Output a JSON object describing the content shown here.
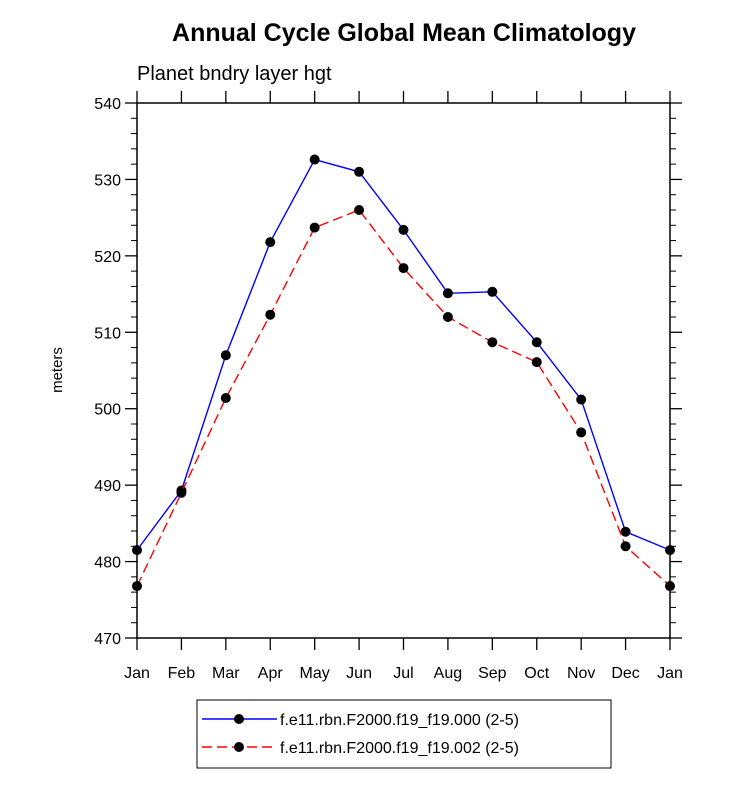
{
  "chart_data": {
    "type": "line",
    "title": "Annual Cycle Global Mean Climatology",
    "subtitle": "Planet bndry layer hgt",
    "xlabel": "",
    "ylabel": "meters",
    "categories": [
      "Jan",
      "Feb",
      "Mar",
      "Apr",
      "May",
      "Jun",
      "Jul",
      "Aug",
      "Sep",
      "Oct",
      "Nov",
      "Dec",
      "Jan"
    ],
    "ylim": [
      470,
      540
    ],
    "yticks": [
      470,
      480,
      490,
      500,
      510,
      520,
      530,
      540
    ],
    "grid": false,
    "legend_position": "bottom",
    "series": [
      {
        "name": "f.e11.rbn.F2000.f19_f19.000 (2-5)",
        "color": "#0000ff",
        "line_style": "solid",
        "values": [
          481.5,
          489.3,
          507.0,
          521.8,
          532.6,
          531.0,
          523.4,
          515.1,
          515.3,
          508.7,
          501.2,
          483.9,
          481.5
        ]
      },
      {
        "name": "f.e11.rbn.F2000.f19_f19.002 (2-5)",
        "color": "#ff0000",
        "line_style": "dashed",
        "values": [
          476.8,
          489.0,
          501.4,
          512.3,
          523.7,
          526.0,
          518.4,
          512.0,
          508.7,
          506.1,
          496.9,
          482.0,
          476.8
        ]
      }
    ]
  }
}
